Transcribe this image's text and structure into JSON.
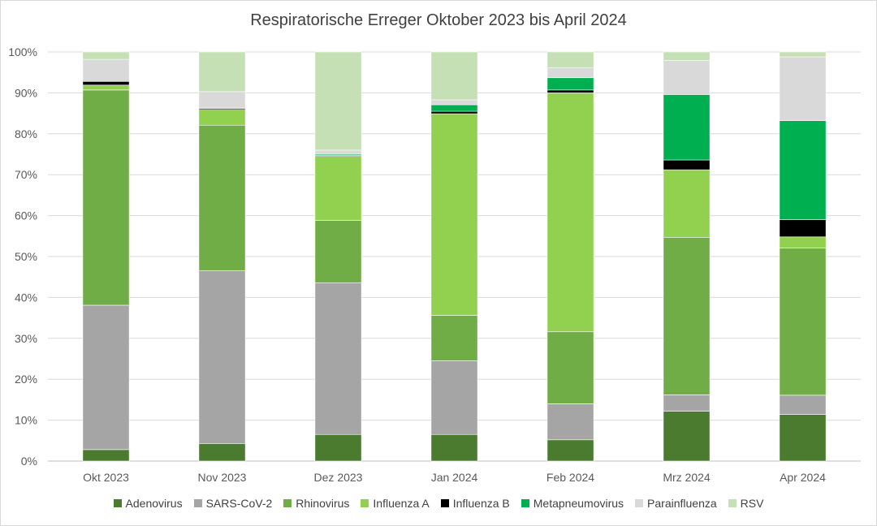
{
  "chart_data": {
    "type": "bar",
    "stacked": true,
    "title": "Respiratorische Erreger Oktober 2023 bis April 2024",
    "xlabel": "",
    "ylabel": "",
    "ylim": [
      0,
      100
    ],
    "y_ticks": [
      "0%",
      "10%",
      "20%",
      "30%",
      "40%",
      "50%",
      "60%",
      "70%",
      "80%",
      "90%",
      "100%"
    ],
    "grid": true,
    "legend_position": "bottom",
    "categories": [
      "Okt 2023",
      "Nov 2023",
      "Dez 2023",
      "Jan 2024",
      "Feb 2024",
      "Mrz 2024",
      "Apr 2024"
    ],
    "series": [
      {
        "name": "Adenovirus",
        "color": "#4a7b2e",
        "values": [
          2.8,
          4.3,
          6.5,
          6.5,
          5.2,
          12.2,
          11.4
        ]
      },
      {
        "name": "SARS-CoV-2",
        "color": "#a5a5a5",
        "values": [
          35.3,
          42.2,
          37.1,
          18.0,
          8.8,
          4.0,
          4.7
        ]
      },
      {
        "name": "Rhinovirus",
        "color": "#70ad47",
        "values": [
          52.6,
          35.6,
          15.2,
          11.1,
          17.6,
          38.5,
          36.0
        ]
      },
      {
        "name": "Influenza A",
        "color": "#92d050",
        "values": [
          1.2,
          3.7,
          15.7,
          49.3,
          58.4,
          16.5,
          2.7
        ]
      },
      {
        "name": "Influenza B",
        "color": "#000000",
        "values": [
          0.9,
          0.3,
          0.2,
          0.6,
          0.7,
          2.4,
          4.2
        ]
      },
      {
        "name": "Metapneumovirus",
        "color": "#00b050",
        "values": [
          0.0,
          0.2,
          0.3,
          1.6,
          3.0,
          16.0,
          24.2
        ]
      },
      {
        "name": "Parainfluenza",
        "color": "#d9d9d9",
        "values": [
          5.4,
          4.0,
          1.0,
          1.2,
          2.4,
          8.3,
          15.6
        ]
      },
      {
        "name": "RSV",
        "color": "#c5e0b4",
        "values": [
          1.8,
          9.7,
          24.0,
          11.7,
          3.9,
          2.1,
          1.2
        ]
      }
    ]
  }
}
